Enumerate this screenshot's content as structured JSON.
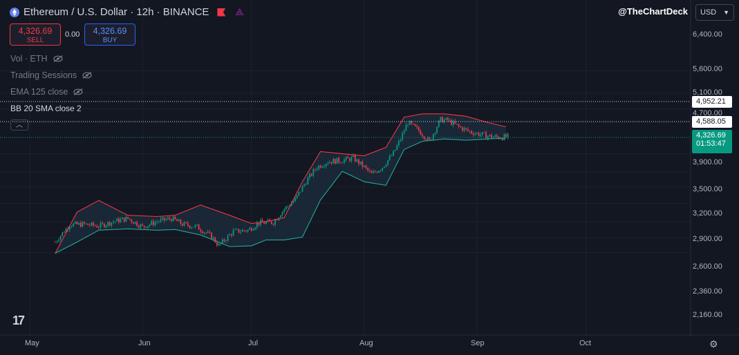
{
  "header": {
    "symbol_title": "Ethereum / U.S. Dollar · 12h · BINANCE",
    "watermark": "@TheChartDeck",
    "currency_selector": "USD"
  },
  "trade": {
    "sell_price": "4,326.69",
    "sell_label": "SELL",
    "spread": "0.00",
    "buy_price": "4,326.69",
    "buy_label": "BUY"
  },
  "indicators": {
    "volume": "Vol · ETH",
    "sessions": "Trading Sessions",
    "ema": "EMA 125 close",
    "bb": "BB 20 SMA close 2"
  },
  "price_labels": {
    "bb_upper": "4,952.21",
    "bb_basis": "4,588.05",
    "last_price": "4,326.69",
    "countdown": "01:53:47"
  },
  "colors": {
    "background": "#131722",
    "up_candle": "#089981",
    "down_candle": "#f23645",
    "bb_upper": "#f23645",
    "bb_lower": "#22ab94",
    "band_fill": "#1b2a3a"
  },
  "chart_data": {
    "type": "candlestick",
    "title": "Ethereum / U.S. Dollar · 12h · BINANCE",
    "yscale": "log",
    "ylim": [
      2000,
      7000
    ],
    "yticks": [
      "6,400.00",
      "5,600.00",
      "5,100.00",
      "4,700.00",
      "3,900.00",
      "3,500.00",
      "3,200.00",
      "2,900.00",
      "2,600.00",
      "2,360.00",
      "2,160.00"
    ],
    "xticks": [
      "May",
      "Jun",
      "Jul",
      "Aug",
      "Sep",
      "Oct"
    ],
    "series": [
      {
        "name": "BB 20 SMA close 2 upper",
        "x": [
          "2025-05-08",
          "2025-05-14",
          "2025-05-20",
          "2025-05-28",
          "2025-06-05",
          "2025-06-10",
          "2025-06-17",
          "2025-06-25",
          "2025-07-01",
          "2025-07-05",
          "2025-07-10",
          "2025-07-15",
          "2025-07-20",
          "2025-07-26",
          "2025-08-01",
          "2025-08-07",
          "2025-08-12",
          "2025-08-17",
          "2025-08-23",
          "2025-08-29",
          "2025-09-04",
          "2025-09-09"
        ],
        "values": [
          2150,
          2750,
          2950,
          2700,
          2680,
          2700,
          2870,
          2700,
          2570,
          2600,
          2660,
          3300,
          3950,
          3900,
          3850,
          4050,
          4850,
          4950,
          4950,
          4880,
          4700,
          4580
        ]
      },
      {
        "name": "BB 20 SMA close 2 lower",
        "x": [
          "2025-05-08",
          "2025-05-14",
          "2025-05-20",
          "2025-05-28",
          "2025-06-05",
          "2025-06-10",
          "2025-06-17",
          "2025-06-25",
          "2025-07-01",
          "2025-07-05",
          "2025-07-10",
          "2025-07-15",
          "2025-07-20",
          "2025-07-26",
          "2025-08-01",
          "2025-08-07",
          "2025-08-12",
          "2025-08-17",
          "2025-08-23",
          "2025-08-29",
          "2025-09-04",
          "2025-09-09"
        ],
        "values": [
          2150,
          2300,
          2470,
          2490,
          2470,
          2480,
          2400,
          2240,
          2250,
          2330,
          2330,
          2370,
          2960,
          3510,
          3300,
          3230,
          4000,
          4200,
          4260,
          4230,
          4260,
          4280
        ]
      },
      {
        "name": "close",
        "x": [
          "2025-05-08",
          "2025-05-12",
          "2025-05-16",
          "2025-05-20",
          "2025-05-24",
          "2025-05-28",
          "2025-06-01",
          "2025-06-05",
          "2025-06-09",
          "2025-06-12",
          "2025-06-16",
          "2025-06-20",
          "2025-06-22",
          "2025-06-26",
          "2025-06-30",
          "2025-07-03",
          "2025-07-07",
          "2025-07-10",
          "2025-07-13",
          "2025-07-16",
          "2025-07-19",
          "2025-07-22",
          "2025-07-26",
          "2025-07-29",
          "2025-08-01",
          "2025-08-03",
          "2025-08-06",
          "2025-08-09",
          "2025-08-11",
          "2025-08-13",
          "2025-08-16",
          "2025-08-19",
          "2025-08-22",
          "2025-08-24",
          "2025-08-27",
          "2025-08-30",
          "2025-09-02",
          "2025-09-05",
          "2025-09-08",
          "2025-09-10"
        ],
        "values": [
          2300,
          2550,
          2560,
          2530,
          2600,
          2650,
          2520,
          2600,
          2650,
          2560,
          2520,
          2380,
          2250,
          2450,
          2470,
          2580,
          2590,
          2800,
          2960,
          3300,
          3600,
          3720,
          3750,
          3800,
          3600,
          3450,
          3600,
          3900,
          4250,
          4700,
          4480,
          4200,
          4780,
          4760,
          4580,
          4450,
          4380,
          4320,
          4300,
          4326.69
        ]
      }
    ]
  }
}
